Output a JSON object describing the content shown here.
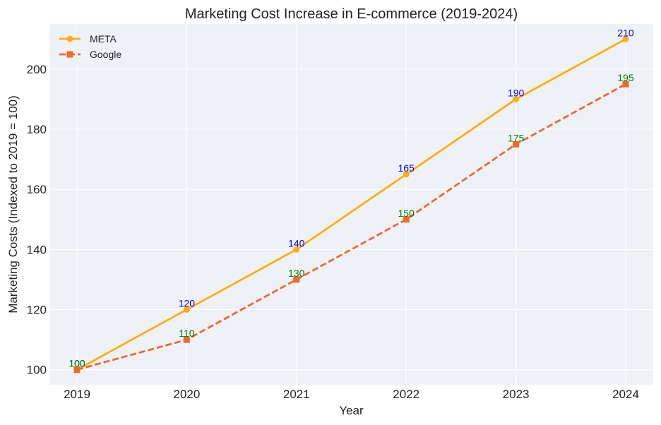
{
  "chart_data": {
    "type": "line",
    "title": "Marketing Cost Increase in E-commerce (2019-2024)",
    "xlabel": "Year",
    "ylabel": "Marketing Costs (Indexed to 2019 = 100)",
    "categories": [
      "2019",
      "2020",
      "2021",
      "2022",
      "2023",
      "2024"
    ],
    "yticks": [
      100,
      120,
      140,
      160,
      180,
      200
    ],
    "ylim": [
      95,
      215
    ],
    "grid": true,
    "legend_position": "top-left",
    "series": [
      {
        "name": "META",
        "values": [
          100,
          120,
          140,
          165,
          190,
          210
        ],
        "color": "#ffae12",
        "line_style": "solid",
        "marker": "circle",
        "label_color": "#0000ee"
      },
      {
        "name": "Google",
        "values": [
          100,
          110,
          130,
          150,
          175,
          195
        ],
        "color": "#ef6a2a",
        "line_style": "dashed",
        "marker": "square",
        "label_color": "#008000"
      }
    ],
    "plot_background": "#eef2f7"
  }
}
